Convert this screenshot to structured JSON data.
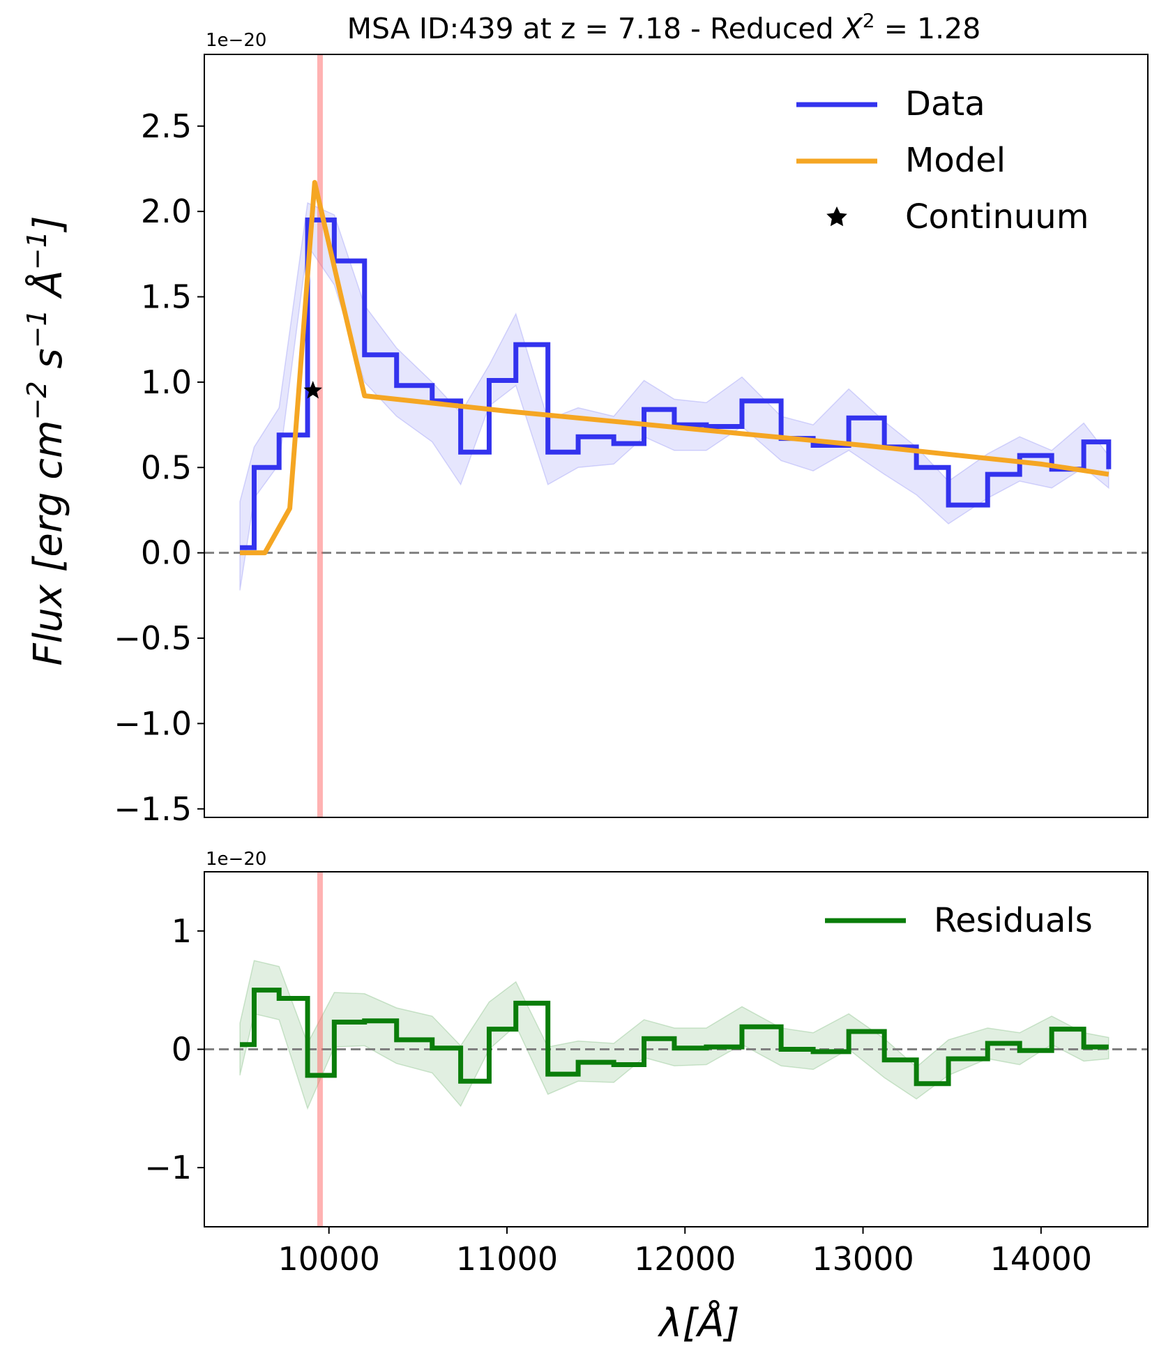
{
  "chart_data": [
    {
      "type": "line",
      "title": "MSA ID:439 at z = 7.18 - Reduced X² = 1.28",
      "title_parts": {
        "main": "MSA ID:439 at z = 7.18 - Reduced ",
        "chi": "X",
        "sup": "2",
        "eq": " = 1.28"
      },
      "ylabel": "Flux [erg cm⁻² s⁻¹ Å⁻¹]",
      "ylabel_parts": {
        "a": "Flux [erg cm",
        "b": "−2",
        "c": " s",
        "d": "−1",
        "e": " Å",
        "f": "−1",
        "g": "]"
      },
      "offset_text": "1e−20",
      "xlim": [
        9300,
        14600
      ],
      "ylim": [
        -1.55,
        2.92
      ],
      "yticks": [
        2.5,
        2.0,
        1.5,
        1.0,
        0.5,
        0.0,
        -0.5,
        -1.0,
        -1.5
      ],
      "ytick_labels": [
        "2.5",
        "2.0",
        "1.5",
        "1.0",
        "0.5",
        "0.0",
        "−0.5",
        "−1.0",
        "−1.5"
      ],
      "zero_line": 0,
      "vline_x": 9950,
      "legend": {
        "position": "top-right",
        "entries": [
          "Data",
          "Model",
          "Continuum"
        ]
      },
      "series": [
        {
          "name": "Data",
          "kind": "step",
          "color": "#3333ee",
          "edges": [
            9500,
            9580,
            9720,
            9880,
            10030,
            10200,
            10380,
            10580,
            10740,
            10900,
            11050,
            11230,
            11400,
            11600,
            11770,
            11940,
            12120,
            12320,
            12540,
            12720,
            12920,
            13120,
            13300,
            13480,
            13700,
            13880,
            14060,
            14240,
            14380
          ],
          "values": [
            0.03,
            0.5,
            0.69,
            1.95,
            1.71,
            1.16,
            0.98,
            0.89,
            0.59,
            1.01,
            1.22,
            0.59,
            0.68,
            0.64,
            0.84,
            0.75,
            0.74,
            0.89,
            0.67,
            0.63,
            0.79,
            0.62,
            0.5,
            0.28,
            0.46,
            0.57,
            0.49,
            0.65,
            0.49
          ],
          "err_lower": [
            -0.22,
            0.32,
            0.52,
            1.8,
            1.57,
            1.0,
            0.8,
            0.65,
            0.4,
            0.86,
            0.98,
            0.4,
            0.5,
            0.52,
            0.68,
            0.6,
            0.6,
            0.74,
            0.54,
            0.48,
            0.6,
            0.46,
            0.34,
            0.17,
            0.32,
            0.42,
            0.38,
            0.5,
            0.38
          ],
          "err_upper": [
            0.3,
            0.62,
            0.85,
            2.05,
            1.98,
            1.45,
            1.2,
            1.0,
            0.82,
            1.1,
            1.4,
            0.78,
            0.85,
            0.8,
            1.01,
            0.9,
            0.88,
            1.03,
            0.8,
            0.75,
            0.96,
            0.77,
            0.62,
            0.42,
            0.58,
            0.68,
            0.6,
            0.76,
            0.57
          ]
        },
        {
          "name": "Model",
          "kind": "line",
          "color": "#f5a623",
          "x": [
            9500,
            9640,
            9780,
            9920,
            10080,
            10200,
            11000,
            12000,
            13000,
            14000,
            14380
          ],
          "y": [
            0.0,
            0.0,
            0.26,
            2.17,
            1.45,
            0.92,
            0.83,
            0.73,
            0.63,
            0.52,
            0.46
          ]
        }
      ],
      "points": [
        {
          "name": "Continuum",
          "marker": "star",
          "x": 9910,
          "y": 0.95
        }
      ]
    },
    {
      "type": "line",
      "offset_text": "1e−20",
      "xlabel": "λ[Å]",
      "xlim": [
        9300,
        14600
      ],
      "ylim": [
        -1.5,
        1.5
      ],
      "xticks": [
        10000,
        11000,
        12000,
        13000,
        14000
      ],
      "xtick_labels": [
        "10000",
        "11000",
        "12000",
        "13000",
        "14000"
      ],
      "yticks": [
        1,
        0,
        -1
      ],
      "ytick_labels": [
        "1",
        "0",
        "−1"
      ],
      "zero_line": 0,
      "vline_x": 9950,
      "legend": {
        "position": "top-right",
        "entries": [
          "Residuals"
        ]
      },
      "series": [
        {
          "name": "Residuals",
          "kind": "step",
          "color": "#0a7d0a",
          "edges": [
            9500,
            9580,
            9720,
            9880,
            10030,
            10200,
            10380,
            10580,
            10740,
            10900,
            11050,
            11230,
            11400,
            11600,
            11770,
            11940,
            12120,
            12320,
            12540,
            12720,
            12920,
            13120,
            13300,
            13480,
            13700,
            13880,
            14060,
            14240,
            14380
          ],
          "values": [
            0.04,
            0.5,
            0.43,
            -0.22,
            0.23,
            0.24,
            0.08,
            0.01,
            -0.27,
            0.17,
            0.39,
            -0.21,
            -0.11,
            -0.13,
            0.09,
            0.01,
            0.02,
            0.19,
            0.0,
            -0.02,
            0.15,
            -0.09,
            -0.29,
            -0.08,
            0.05,
            -0.01,
            0.17,
            0.02,
            0.02
          ],
          "err_lower": [
            -0.22,
            0.3,
            0.25,
            -0.5,
            0.02,
            0.03,
            -0.12,
            -0.2,
            -0.48,
            0.0,
            0.2,
            -0.38,
            -0.27,
            -0.28,
            -0.07,
            -0.14,
            -0.13,
            0.04,
            -0.14,
            -0.17,
            0.0,
            -0.24,
            -0.42,
            -0.22,
            -0.08,
            -0.13,
            0.04,
            -0.1,
            -0.08
          ],
          "err_upper": [
            0.22,
            0.75,
            0.7,
            0.05,
            0.48,
            0.47,
            0.35,
            0.28,
            0.03,
            0.4,
            0.57,
            0.02,
            0.07,
            0.05,
            0.25,
            0.18,
            0.18,
            0.36,
            0.18,
            0.14,
            0.3,
            0.09,
            -0.15,
            0.08,
            0.18,
            0.14,
            0.28,
            0.14,
            0.1
          ]
        }
      ]
    }
  ]
}
